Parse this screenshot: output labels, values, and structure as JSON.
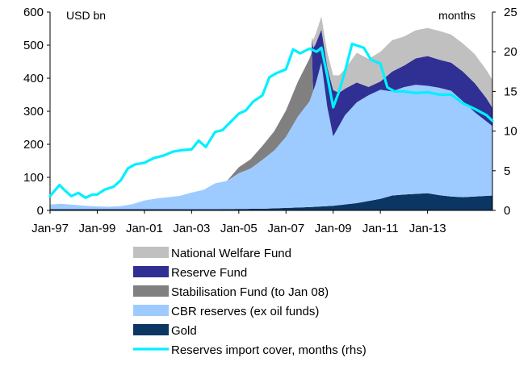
{
  "chart_data": {
    "type": "area",
    "title": "",
    "left_axis_unit": "USD bn",
    "right_axis_unit": "months",
    "ylim_left": [
      0,
      600
    ],
    "ylim_right": [
      0,
      25
    ],
    "yticks_left": [
      "0",
      "100",
      "200",
      "300",
      "400",
      "500",
      "600"
    ],
    "yticks_right": [
      "0",
      "5",
      "10",
      "15",
      "20",
      "25"
    ],
    "xlim": [
      1997.0,
      2015.75
    ],
    "xticks": [
      {
        "label": "Jan-97",
        "x": 1997.0
      },
      {
        "label": "Jan-99",
        "x": 1999.0
      },
      {
        "label": "Jan-01",
        "x": 2001.0
      },
      {
        "label": "Jan-03",
        "x": 2003.0
      },
      {
        "label": "Jan-05",
        "x": 2005.0
      },
      {
        "label": "Jan-07",
        "x": 2007.0
      },
      {
        "label": "Jan-09",
        "x": 2009.0
      },
      {
        "label": "Jan-11",
        "x": 2011.0
      },
      {
        "label": "Jan-13",
        "x": 2013.0
      }
    ],
    "stacked": true,
    "series": [
      {
        "name": "Gold",
        "color": "#0b3563",
        "x": [
          1997.0,
          2004.0,
          2006.0,
          2008.0,
          2008.5,
          2009.0,
          2010.0,
          2011.0,
          2011.5,
          2012.0,
          2012.5,
          2013.0,
          2013.5,
          2014.0,
          2014.5,
          2015.0,
          2015.5,
          2015.75
        ],
        "values": [
          4,
          4,
          5,
          10,
          12,
          14,
          22,
          35,
          45,
          48,
          50,
          52,
          46,
          42,
          40,
          42,
          44,
          45
        ]
      },
      {
        "name": "CBR reserves (ex oil funds)",
        "color": "#9ecbff",
        "x": [
          1997.0,
          1997.5,
          1998.0,
          1998.5,
          1999.0,
          1999.5,
          2000.0,
          2000.5,
          2001.0,
          2001.5,
          2002.0,
          2002.5,
          2003.0,
          2003.5,
          2004.0,
          2004.5,
          2005.0,
          2005.5,
          2006.0,
          2006.5,
          2007.0,
          2007.5,
          2008.0,
          2008.25,
          2008.5,
          2008.75,
          2009.0,
          2009.25,
          2009.5,
          2010.0,
          2010.5,
          2011.0,
          2011.5,
          2012.0,
          2012.5,
          2013.0,
          2013.5,
          2014.0,
          2014.5,
          2015.0,
          2015.5,
          2015.75
        ],
        "values": [
          14,
          16,
          13,
          10,
          8,
          7,
          9,
          15,
          26,
          32,
          36,
          40,
          50,
          58,
          78,
          85,
          108,
          122,
          148,
          175,
          215,
          275,
          320,
          370,
          435,
          300,
          210,
          240,
          270,
          305,
          320,
          330,
          315,
          325,
          330,
          325,
          325,
          320,
          290,
          255,
          225,
          210
        ]
      },
      {
        "name": "Stabilisation Fund (to Jan 08)",
        "color": "#808080",
        "x": [
          1997.0,
          2004.5,
          2005.0,
          2005.5,
          2006.0,
          2006.5,
          2007.0,
          2007.5,
          2008.0,
          2008.1,
          2008.15,
          2015.75
        ],
        "values": [
          0,
          0,
          18,
          28,
          42,
          58,
          80,
          105,
          130,
          130,
          0,
          0
        ]
      },
      {
        "name": "Reserve Fund",
        "color": "#303094",
        "x": [
          1997.0,
          2008.08,
          2008.15,
          2008.5,
          2008.75,
          2009.0,
          2009.25,
          2009.5,
          2010.0,
          2010.5,
          2011.0,
          2011.5,
          2012.0,
          2012.5,
          2013.0,
          2013.5,
          2014.0,
          2014.5,
          2015.0,
          2015.5,
          2015.75
        ],
        "values": [
          0,
          0,
          130,
          100,
          120,
          140,
          100,
          80,
          60,
          25,
          25,
          60,
          65,
          80,
          90,
          85,
          85,
          90,
          88,
          70,
          55
        ]
      },
      {
        "name": "National Welfare Fund",
        "color": "#c0c0c0",
        "x": [
          1997.0,
          2008.08,
          2008.15,
          2008.5,
          2008.75,
          2009.0,
          2009.5,
          2010.0,
          2010.5,
          2011.0,
          2011.5,
          2012.0,
          2012.5,
          2013.0,
          2013.5,
          2014.0,
          2014.5,
          2015.0,
          2015.5,
          2015.75
        ],
        "values": [
          0,
          0,
          25,
          40,
          45,
          45,
          60,
          90,
          85,
          90,
          95,
          88,
          85,
          85,
          87,
          85,
          85,
          88,
          85,
          85
        ]
      }
    ],
    "line_series": {
      "name": "Reserves import cover, months (rhs)",
      "axis": "right",
      "color": "#00f0ff",
      "x": [
        1997.0,
        1997.4,
        1997.6,
        1997.9,
        1998.2,
        1998.5,
        1998.8,
        1999.0,
        1999.3,
        1999.7,
        2000.0,
        2000.3,
        2000.6,
        2001.0,
        2001.4,
        2001.8,
        2002.2,
        2002.6,
        2003.0,
        2003.3,
        2003.6,
        2004.0,
        2004.3,
        2004.6,
        2005.0,
        2005.3,
        2005.6,
        2006.0,
        2006.3,
        2006.6,
        2007.0,
        2007.3,
        2007.6,
        2008.0,
        2008.3,
        2008.5,
        2008.75,
        2009.0,
        2009.25,
        2009.5,
        2009.8,
        2010.0,
        2010.3,
        2010.6,
        2011.0,
        2011.3,
        2011.6,
        2012.0,
        2012.5,
        2013.0,
        2013.5,
        2014.0,
        2014.5,
        2015.0,
        2015.5,
        2015.75
      ],
      "values": [
        1.8,
        3.2,
        2.6,
        1.8,
        2.2,
        1.6,
        2.0,
        2.0,
        2.6,
        3.0,
        3.8,
        5.3,
        5.8,
        6.0,
        6.6,
        6.9,
        7.4,
        7.6,
        7.7,
        8.8,
        8.0,
        9.9,
        10.1,
        11.0,
        12.2,
        12.6,
        13.7,
        14.5,
        16.8,
        17.3,
        17.8,
        20.3,
        19.8,
        20.4,
        20.0,
        20.5,
        17.0,
        13.0,
        15.0,
        17.5,
        21.0,
        20.8,
        20.5,
        19.0,
        18.5,
        15.5,
        15.0,
        15.0,
        14.8,
        14.9,
        14.6,
        14.6,
        13.5,
        12.8,
        12.0,
        11.3
      ]
    },
    "legend": [
      {
        "label": "National Welfare Fund",
        "kind": "box",
        "color": "#c0c0c0"
      },
      {
        "label": "Reserve Fund",
        "kind": "box",
        "color": "#303094"
      },
      {
        "label": "Stabilisation Fund (to Jan 08)",
        "kind": "box",
        "color": "#808080"
      },
      {
        "label": "CBR reserves (ex oil funds)",
        "kind": "box",
        "color": "#9ecbff"
      },
      {
        "label": "Gold",
        "kind": "box",
        "color": "#0b3563"
      },
      {
        "label": "Reserves import cover, months (rhs)",
        "kind": "line",
        "color": "#00f0ff"
      }
    ]
  }
}
